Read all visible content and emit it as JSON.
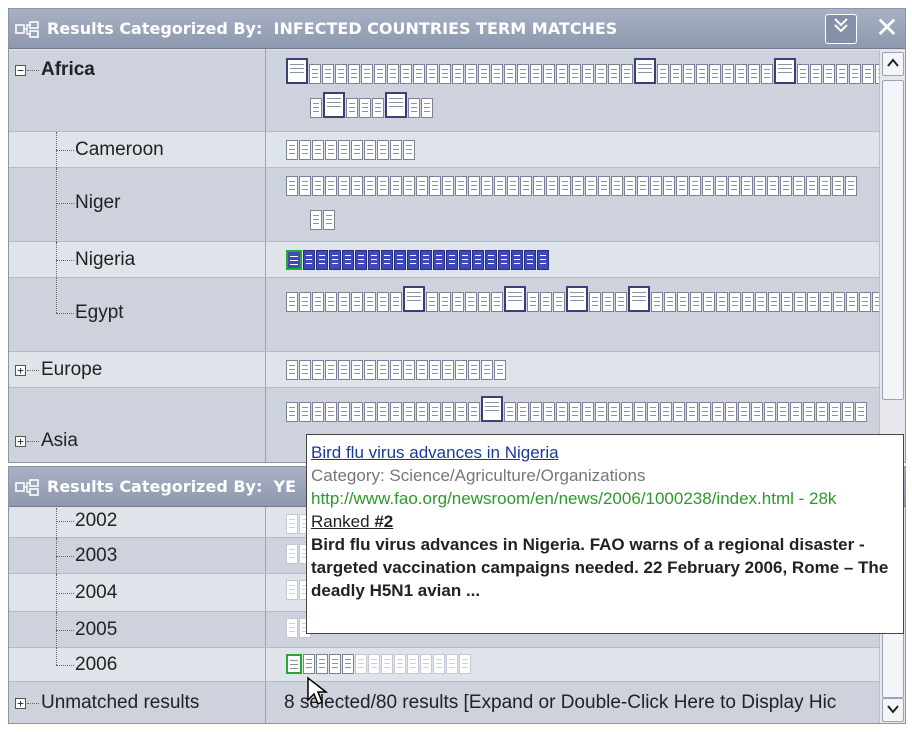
{
  "top_panel": {
    "title_prefix": "Results Categorized By:",
    "title_value": "INFECTED COUNTRIES TERM MATCHES",
    "collapse_glyph": "»",
    "close_glyph": "✕",
    "rows": [
      {
        "label": "Africa",
        "expander": "−",
        "docs": 52,
        "selected": [
          0,
          26,
          36,
          45,
          49
        ]
      },
      {
        "label": "Cameroon",
        "docs": 10,
        "selected": []
      },
      {
        "label": "Niger",
        "docs": 46,
        "selected": []
      },
      {
        "label": "Nigeria",
        "docs": 20,
        "selected": [],
        "highlight": "blue"
      },
      {
        "label": "Egypt",
        "docs": 44,
        "selected": [
          9,
          16,
          20,
          24
        ]
      },
      {
        "label": "Europe",
        "expander": "+",
        "docs": 17,
        "selected": []
      },
      {
        "label": "Asia",
        "expander": "+",
        "docs": 44,
        "selected": [
          15
        ]
      }
    ]
  },
  "bottom_panel": {
    "title_prefix": "Results Categorized By:",
    "title_value": "YE",
    "rows": [
      {
        "label": "2002"
      },
      {
        "label": "2003"
      },
      {
        "label": "2004"
      },
      {
        "label": "2005"
      },
      {
        "label": "2006"
      },
      {
        "label": "Unmatched results",
        "expander": "+"
      }
    ],
    "status": "8 selected/80 results [Expand or Double-Click Here to Display Hic"
  },
  "tooltip": {
    "title": "Bird flu virus advances in Nigeria",
    "category": "Category: Science/Agriculture/Organizations",
    "url": "http://www.fao.org/newsroom/en/news/2006/1000238/index.html - 28k",
    "ranked_label": "Ranked",
    "ranked_value": "#2",
    "snippet": "Bird flu virus advances in Nigeria. FAO warns of a regional disaster - targeted vaccination campaigns needed. 22 February 2006, Rome – The deadly H5N1 avian ..."
  },
  "icons": {
    "title": "tree-hierarchy-icon",
    "collapse": "double-chevron-down-icon",
    "close": "close-icon",
    "scroll_up": "arrow-up-icon",
    "scroll_down": "arrow-down-icon",
    "cursor": "mouse-pointer-icon"
  },
  "colors": {
    "titlebar": "#8e98ae",
    "link": "#1a3a9a",
    "url": "#2a9a2a",
    "selected_doc": "#3a3f7a",
    "highlight_doc": "#3f49b8"
  }
}
